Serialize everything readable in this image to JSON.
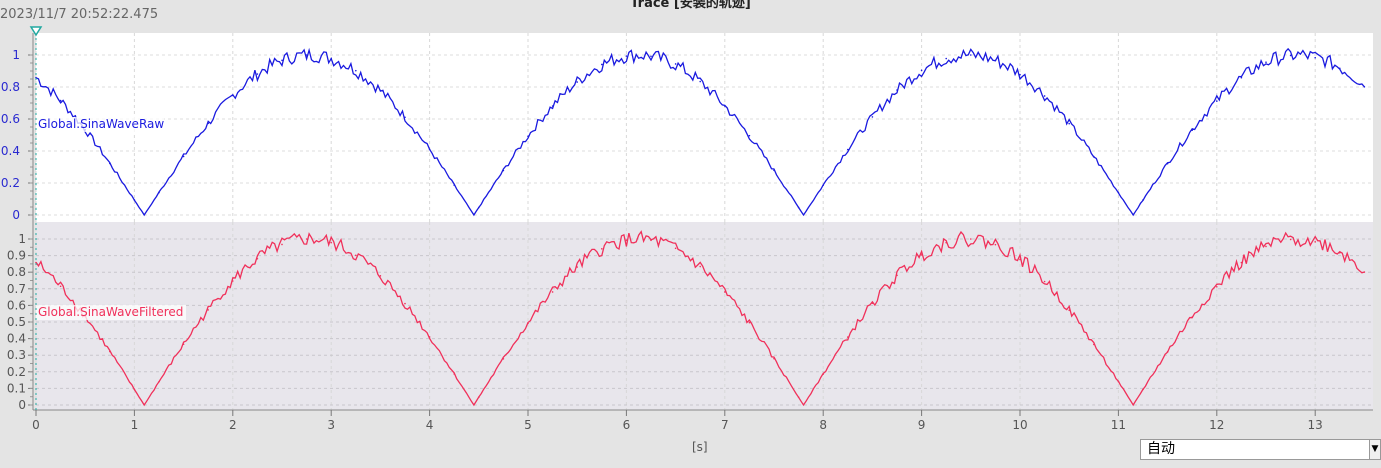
{
  "window": {
    "title": "Trace [安装的轨迹]",
    "timestamp": "2023/11/7 20:52:22.475"
  },
  "time_unit": "[s]",
  "time_mode": {
    "selected": "自动"
  },
  "colors": {
    "raw": "#1a1adf",
    "filtered": "#f0305a",
    "cursor": "#20a8a0",
    "bottom_bg": "#e8e6ec"
  },
  "chart_data": [
    {
      "type": "line",
      "series": [
        {
          "name": "Global.SinaWaveRaw",
          "color": "#1a1adf"
        }
      ],
      "xlim": [
        0,
        13.6
      ],
      "ylim": [
        0,
        1.1
      ],
      "xticks": [
        "0",
        "1",
        "2",
        "3",
        "4",
        "5",
        "6",
        "7",
        "8",
        "9",
        "10",
        "11",
        "12",
        "13"
      ],
      "yticks": [
        "0",
        "0.2",
        "0.4",
        "0.6",
        "0.8",
        "1"
      ],
      "grid": true
    },
    {
      "type": "line",
      "series": [
        {
          "name": "Global.SinaWaveFiltered",
          "color": "#f0305a"
        }
      ],
      "xlim": [
        0,
        13.6
      ],
      "ylim": [
        0,
        1.05
      ],
      "yticks": [
        "0",
        "0.1",
        "0.2",
        "0.3",
        "0.4",
        "0.5",
        "0.6",
        "0.7",
        "0.8",
        "0.9",
        "1"
      ],
      "grid": true
    }
  ],
  "samples": {
    "x": [
      0,
      0.25,
      0.5,
      0.75,
      1,
      1.25,
      1.5,
      1.75,
      2,
      2.25,
      2.5,
      2.75,
      3,
      3.25,
      3.5,
      3.75,
      4,
      4.25,
      4.5,
      4.75,
      5,
      5.25,
      5.5,
      5.75,
      6,
      6.25,
      6.5,
      6.75,
      7,
      7.25,
      7.5,
      7.75,
      8,
      8.25,
      8.5,
      8.75,
      9,
      9.25,
      9.5,
      9.75,
      10,
      10.25,
      10.5,
      10.75,
      11,
      11.25,
      11.5,
      11.75,
      12,
      12.25,
      12.5,
      12.75,
      13,
      13.25,
      13.5
    ],
    "y": [
      0.858,
      0.715,
      0.533,
      0.322,
      0.094,
      0.14,
      0.366,
      0.573,
      0.747,
      0.881,
      0.967,
      1.0,
      0.978,
      0.902,
      0.778,
      0.611,
      0.41,
      0.187,
      0.047,
      0.278,
      0.492,
      0.681,
      0.831,
      0.941,
      0.993,
      0.992,
      0.944,
      0.834,
      0.681,
      0.496,
      0.279,
      0.047,
      0.186,
      0.409,
      0.613,
      0.781,
      0.904,
      0.978,
      1.0,
      0.966,
      0.877,
      0.744,
      0.571,
      0.365,
      0.141,
      0.094,
      0.321,
      0.53,
      0.712,
      0.858,
      0.955,
      0.997,
      0.983,
      0.917,
      0.801
    ]
  }
}
